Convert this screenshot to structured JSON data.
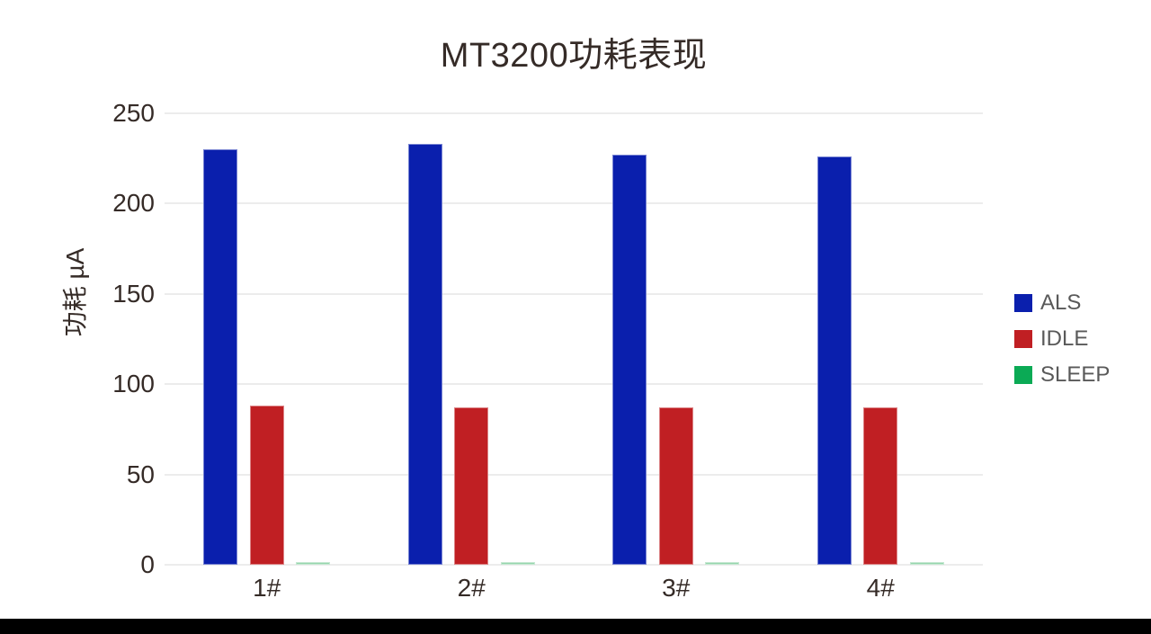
{
  "page": {
    "background": "#ffffff",
    "bottom_bar_color": "#000000"
  },
  "chart_data": {
    "type": "bar",
    "title": "MT3200功耗表现",
    "xlabel": "",
    "ylabel": "功耗 µA",
    "categories": [
      "1#",
      "2#",
      "3#",
      "4#"
    ],
    "series": [
      {
        "name": "ALS",
        "color": "#0a1fad",
        "values": [
          230,
          233,
          227,
          226
        ]
      },
      {
        "name": "IDLE",
        "color": "#c01f23",
        "values": [
          88,
          87,
          87,
          87
        ]
      },
      {
        "name": "SLEEP",
        "color": "#0baa55",
        "bar_color": "#97d6ae",
        "values": [
          1,
          1,
          1,
          1
        ]
      }
    ],
    "ylim": [
      0,
      250
    ],
    "yticks": [
      0,
      50,
      100,
      150,
      200,
      250
    ],
    "grid": true,
    "legend_position": "right",
    "colors": {
      "grid_line": "#ececec",
      "tick_text": "#352b27",
      "title_text": "#352b27",
      "legend_text": "#595959"
    }
  }
}
